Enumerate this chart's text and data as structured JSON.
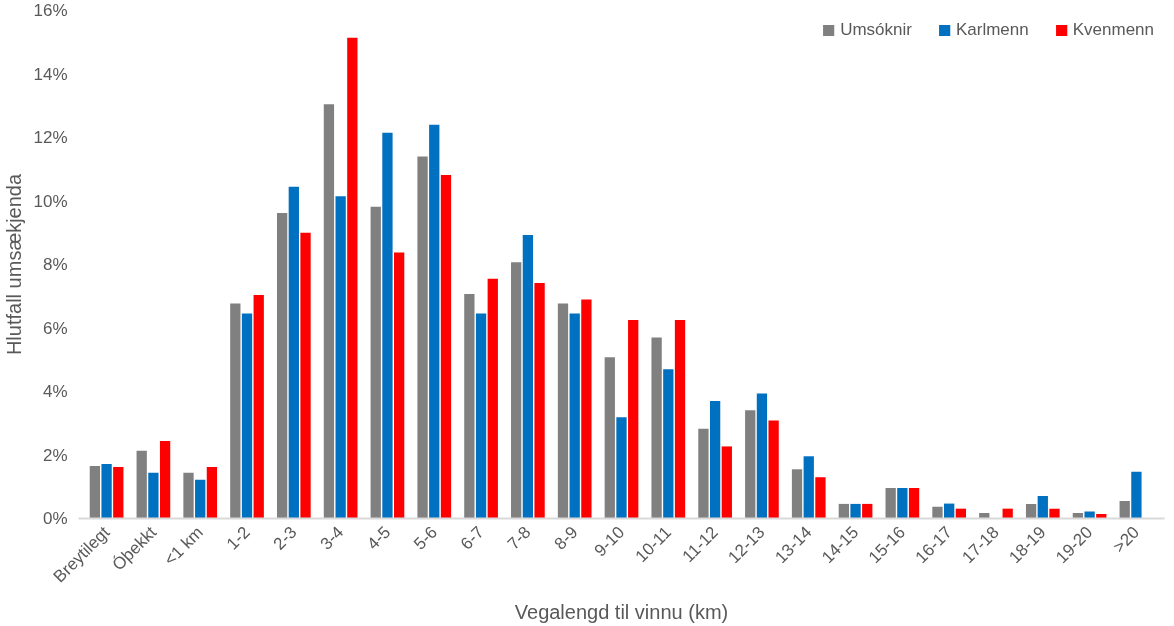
{
  "chart_data": {
    "type": "bar",
    "xlabel": "Vegalengd til vinnu (km)",
    "ylabel": "Hlutfall umsækjenda",
    "categories": [
      "Breytilegt",
      "Óþekkt",
      "<1 km",
      "1-2",
      "2-3",
      "3-4",
      "4-5",
      "5-6",
      "6-7",
      "7-8",
      "8-9",
      "9-10",
      "10-11",
      "11-12",
      "12-13",
      "13-14",
      "14-15",
      "15-16",
      "16-17",
      "17-18",
      "18-19",
      "19-20",
      ">20"
    ],
    "series": [
      {
        "name": "Umsóknir",
        "color": "#808080",
        "values": [
          1.65,
          2.13,
          1.44,
          6.77,
          9.62,
          13.05,
          9.82,
          11.4,
          7.07,
          8.07,
          6.77,
          5.08,
          5.7,
          2.83,
          3.41,
          1.55,
          0.46,
          0.96,
          0.37,
          0.17,
          0.46,
          0.17,
          0.55
        ]
      },
      {
        "name": "Karlmenn",
        "color": "#0070c0",
        "values": [
          1.72,
          1.44,
          1.22,
          6.46,
          10.45,
          10.15,
          12.15,
          12.4,
          6.46,
          8.93,
          6.46,
          3.19,
          4.7,
          3.7,
          3.94,
          1.96,
          0.46,
          0.96,
          0.47,
          0,
          0.71,
          0.22,
          1.47
        ]
      },
      {
        "name": "Kvenmenn",
        "color": "#ff0000",
        "values": [
          1.62,
          2.44,
          1.62,
          7.04,
          9.0,
          15.14,
          8.38,
          10.82,
          7.55,
          7.42,
          6.9,
          6.25,
          6.25,
          2.27,
          3.09,
          1.3,
          0.46,
          0.96,
          0.31,
          0.31,
          0.31,
          0.14,
          null
        ]
      }
    ],
    "ylim": [
      0,
      16
    ],
    "yticks": [
      {
        "value": 0,
        "label": "0%"
      },
      {
        "value": 2,
        "label": "2%"
      },
      {
        "value": 4,
        "label": "4%"
      },
      {
        "value": 6,
        "label": "6%"
      },
      {
        "value": 8,
        "label": "8%"
      },
      {
        "value": 10,
        "label": "10%"
      },
      {
        "value": 12,
        "label": "12%"
      },
      {
        "value": 14,
        "label": "14%"
      },
      {
        "value": 16,
        "label": "16%"
      }
    ],
    "grid": false,
    "legend": "top right"
  }
}
